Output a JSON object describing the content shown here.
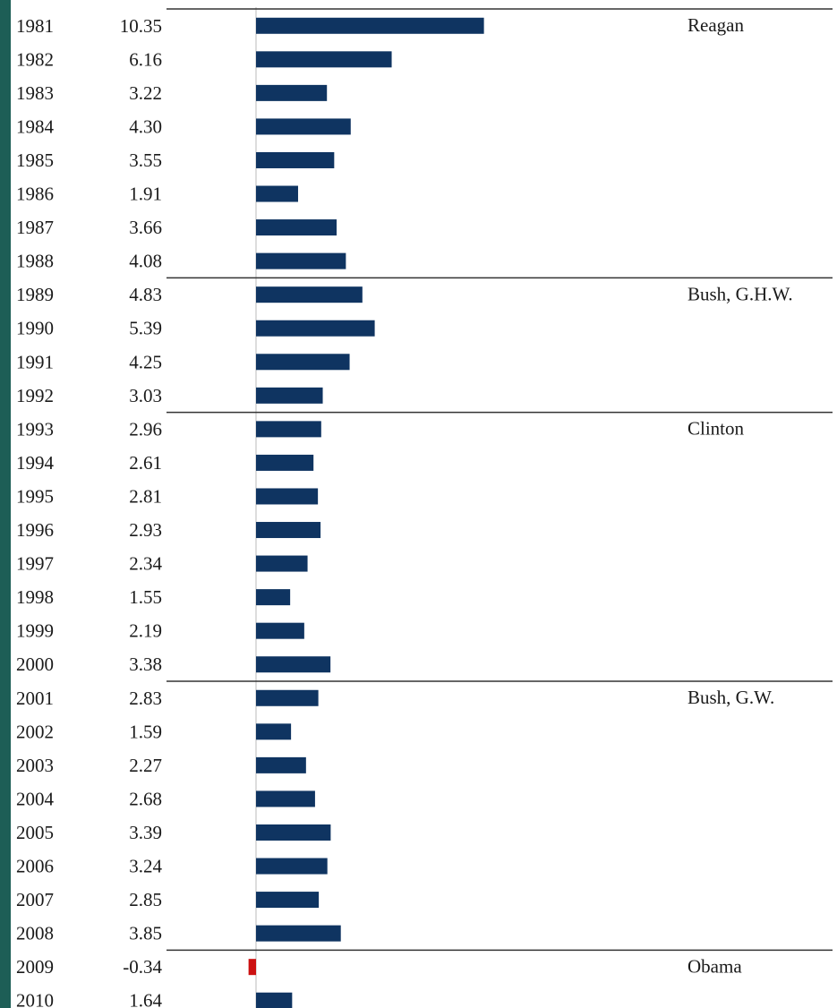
{
  "chart_data": {
    "type": "bar",
    "orientation": "horizontal",
    "title": "",
    "xlabel": "",
    "ylabel": "",
    "categories": [
      "1981",
      "1982",
      "1983",
      "1984",
      "1985",
      "1986",
      "1987",
      "1988",
      "1989",
      "1990",
      "1991",
      "1992",
      "1993",
      "1994",
      "1995",
      "1996",
      "1997",
      "1998",
      "1999",
      "2000",
      "2001",
      "2002",
      "2003",
      "2004",
      "2005",
      "2006",
      "2007",
      "2008",
      "2009",
      "2010"
    ],
    "value_labels": [
      "10.35",
      "6.16",
      "3.22",
      "4.30",
      "3.55",
      "1.91",
      "3.66",
      "4.08",
      "4.83",
      "5.39",
      "4.25",
      "3.03",
      "2.96",
      "2.61",
      "2.81",
      "2.93",
      "2.34",
      "1.55",
      "2.19",
      "3.38",
      "2.83",
      "1.59",
      "2.27",
      "2.68",
      "3.39",
      "3.24",
      "2.85",
      "3.85",
      "-0.34",
      "1.64"
    ],
    "values": [
      10.35,
      6.16,
      3.22,
      4.3,
      3.55,
      1.91,
      3.66,
      4.08,
      4.83,
      5.39,
      4.25,
      3.03,
      2.96,
      2.61,
      2.81,
      2.93,
      2.34,
      1.55,
      2.19,
      3.38,
      2.83,
      1.59,
      2.27,
      2.68,
      3.39,
      3.24,
      2.85,
      3.85,
      -0.34,
      1.64
    ],
    "groups": [
      {
        "label": "Reagan",
        "start": 0,
        "end": 7
      },
      {
        "label": "Bush, G.H.W.",
        "start": 8,
        "end": 11
      },
      {
        "label": "Clinton",
        "start": 12,
        "end": 19
      },
      {
        "label": "Bush, G.W.",
        "start": 20,
        "end": 27
      },
      {
        "label": "Obama",
        "start": 28,
        "end": 29
      }
    ],
    "colors": {
      "positive": "#0f3461",
      "negative": "#cc1111",
      "background": "#1d5e56"
    },
    "grid": false,
    "legend": "none"
  }
}
